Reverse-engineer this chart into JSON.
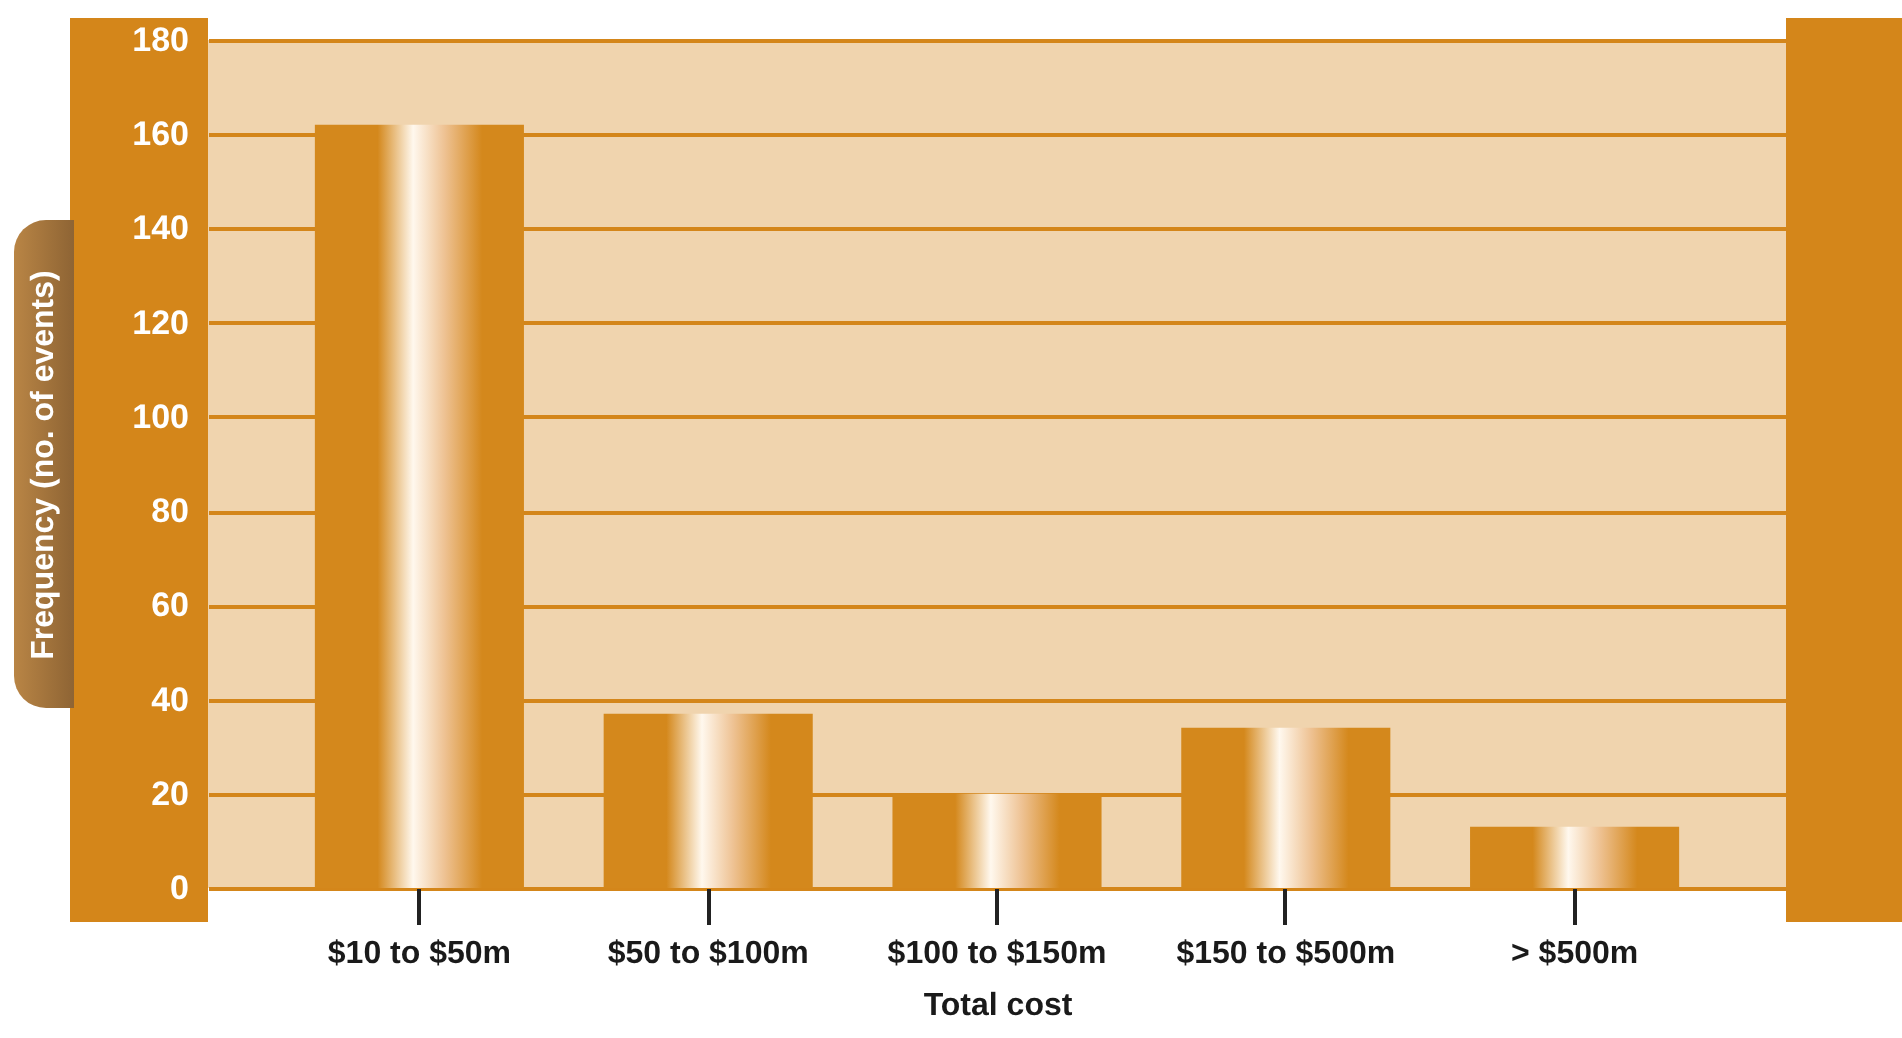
{
  "chart_data": {
    "type": "bar",
    "categories": [
      "$10 to $50m",
      "$50 to $100m",
      "$100 to $150m",
      "$150 to $500m",
      "> $500m"
    ],
    "values": [
      162,
      37,
      20,
      34,
      13
    ],
    "color": "#d4881c",
    "xlabel": "Total cost",
    "ylabel": "Frequency (no. of events)",
    "ylim": [
      0,
      180
    ],
    "yticks": [
      0,
      20,
      40,
      60,
      80,
      100,
      120,
      140,
      160,
      180
    ],
    "grid": "y"
  }
}
